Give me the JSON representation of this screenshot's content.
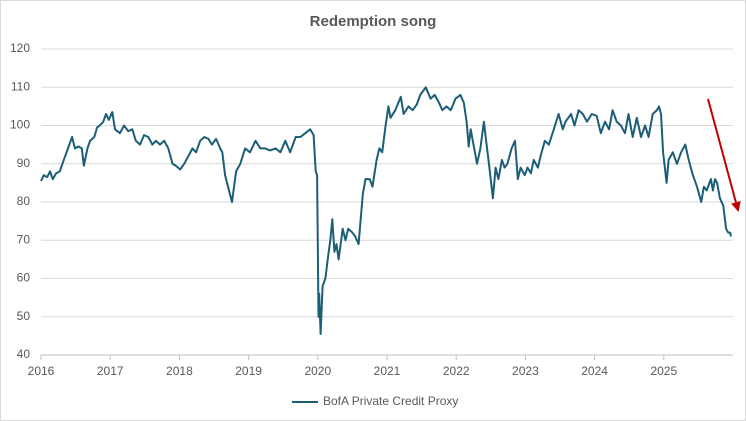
{
  "chart_data": {
    "type": "line",
    "title": "Redemption song",
    "x": [
      2016.0,
      2016.04,
      2016.09,
      2016.13,
      2016.17,
      2016.22,
      2016.27,
      2016.33,
      2016.39,
      2016.45,
      2016.49,
      2016.54,
      2016.59,
      2016.62,
      2016.67,
      2016.71,
      2016.77,
      2016.81,
      2016.85,
      2016.9,
      2016.94,
      2016.98,
      2017.03,
      2017.07,
      2017.14,
      2017.2,
      2017.26,
      2017.32,
      2017.37,
      2017.43,
      2017.49,
      2017.55,
      2017.61,
      2017.66,
      2017.72,
      2017.78,
      2017.84,
      2017.9,
      2017.95,
      2018.01,
      2018.07,
      2018.13,
      2018.19,
      2018.24,
      2018.3,
      2018.36,
      2018.42,
      2018.47,
      2018.53,
      2018.59,
      2018.62,
      2018.66,
      2018.76,
      2018.82,
      2018.88,
      2018.95,
      2019.02,
      2019.1,
      2019.17,
      2019.24,
      2019.31,
      2019.39,
      2019.46,
      2019.53,
      2019.6,
      2019.68,
      2019.75,
      2019.82,
      2019.89,
      2019.94,
      2019.97,
      2019.99,
      2020.01,
      2020.02,
      2020.04,
      2020.07,
      2020.11,
      2020.15,
      2020.18,
      2020.21,
      2020.24,
      2020.27,
      2020.3,
      2020.36,
      2020.4,
      2020.44,
      2020.5,
      2020.54,
      2020.59,
      2020.65,
      2020.69,
      2020.75,
      2020.79,
      2020.85,
      2020.89,
      2020.93,
      2020.98,
      2021.02,
      2021.05,
      2021.12,
      2021.2,
      2021.24,
      2021.31,
      2021.37,
      2021.43,
      2021.48,
      2021.56,
      2021.63,
      2021.69,
      2021.75,
      2021.8,
      2021.86,
      2021.92,
      2021.99,
      2022.06,
      2022.11,
      2022.15,
      2022.18,
      2022.21,
      2022.25,
      2022.3,
      2022.35,
      2022.4,
      2022.44,
      2022.48,
      2022.53,
      2022.57,
      2022.61,
      2022.66,
      2022.7,
      2022.74,
      2022.8,
      2022.85,
      2022.89,
      2022.93,
      2022.99,
      2023.03,
      2023.08,
      2023.12,
      2023.18,
      2023.22,
      2023.28,
      2023.34,
      2023.41,
      2023.48,
      2023.54,
      2023.58,
      2023.66,
      2023.71,
      2023.77,
      2023.83,
      2023.89,
      2023.96,
      2024.03,
      2024.09,
      2024.15,
      2024.21,
      2024.26,
      2024.32,
      2024.38,
      2024.44,
      2024.49,
      2024.55,
      2024.61,
      2024.67,
      2024.73,
      2024.78,
      2024.84,
      2024.9,
      2024.93,
      2024.96,
      2024.99,
      2025.04,
      2025.07,
      2025.13,
      2025.19,
      2025.25,
      2025.31,
      2025.36,
      2025.42,
      2025.48,
      2025.54,
      2025.58,
      2025.62,
      2025.68,
      2025.71,
      2025.74,
      2025.77,
      2025.81,
      2025.86,
      2025.9,
      2025.93,
      2025.96,
      2025.97
    ],
    "series": [
      {
        "name": "BofA Private Credit Proxy",
        "color": "#1b5e76",
        "values": [
          85.5,
          87,
          86.5,
          88,
          86,
          87.5,
          88,
          91,
          94,
          97,
          94,
          94.5,
          94,
          89.5,
          94,
          96,
          97,
          99.5,
          100,
          101,
          103,
          101.5,
          103.5,
          99,
          98,
          100,
          98.5,
          99,
          96,
          95,
          97.5,
          97,
          95,
          96,
          95,
          96,
          94,
          90,
          89.5,
          88.5,
          90,
          92,
          94,
          93,
          96,
          97,
          96.5,
          95,
          96.5,
          94,
          93,
          87,
          80,
          88,
          90,
          94,
          93,
          96,
          94,
          94,
          93.5,
          94,
          93,
          96,
          93,
          97,
          97,
          98,
          99,
          97.5,
          88,
          87,
          50,
          56,
          45.5,
          58,
          60,
          66,
          70,
          75.5,
          67,
          69,
          65,
          73,
          70,
          73,
          72,
          71,
          69,
          82,
          86,
          86,
          84,
          91,
          94,
          93,
          100,
          105,
          102,
          104,
          107.5,
          103,
          105,
          104,
          105.5,
          108,
          110,
          107,
          108,
          106,
          104,
          105,
          104,
          107,
          108,
          106,
          101,
          94.5,
          99,
          95,
          90,
          94,
          101,
          95,
          89,
          81,
          89,
          86,
          91,
          89,
          90,
          94,
          96,
          86,
          89,
          87,
          89,
          87.5,
          91,
          89,
          92,
          96,
          95,
          99,
          103,
          99,
          101,
          103,
          100,
          104,
          103,
          101,
          103,
          102.5,
          98,
          101,
          99,
          104,
          101,
          100,
          98,
          103,
          97,
          102,
          97,
          100,
          97,
          103,
          104,
          105,
          103,
          93,
          85,
          91,
          93,
          90,
          93,
          95,
          91,
          87,
          84,
          80,
          84,
          83,
          86,
          83,
          86,
          85,
          81,
          79,
          73,
          72,
          72,
          71
        ]
      }
    ],
    "xlim": [
      2016,
      2026
    ],
    "xticks": [
      2016,
      2017,
      2018,
      2019,
      2020,
      2021,
      2022,
      2023,
      2024,
      2025
    ],
    "ylim": [
      40,
      120
    ],
    "yticks": [
      40,
      50,
      60,
      70,
      80,
      90,
      100,
      110,
      120
    ],
    "grid": true
  }
}
